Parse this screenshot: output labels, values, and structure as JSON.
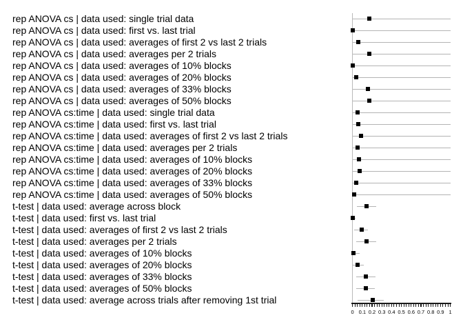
{
  "chart_data": {
    "type": "scatter",
    "subtype": "horizontal-forest-plot",
    "title": "",
    "xlabel": "",
    "ylabel": "",
    "xlim": [
      0,
      1
    ],
    "x_ticks": [
      "0",
      "0.1",
      "0.2",
      "0.3",
      "0.4",
      "0.5",
      "0.6",
      "0.7",
      "0.8",
      "0.9",
      "1"
    ],
    "x_minor_tick_step": 0.025,
    "grid": false,
    "legend": "none",
    "marker": "black-square",
    "error_bar_style": "plain-line-no-caps",
    "rows": [
      {
        "label": "rep ANOVA cs | data used: single trial data",
        "value": 0.172,
        "ci": [
          0,
          1
        ]
      },
      {
        "label": "rep ANOVA cs | data used: first vs. last trial",
        "value": 0.0,
        "ci": [
          0,
          1
        ]
      },
      {
        "label": "rep ANOVA cs | data used: averages of first 2 vs last 2 trials",
        "value": 0.062,
        "ci": [
          0,
          1
        ]
      },
      {
        "label": "rep ANOVA cs | data used: averages per 2 trials",
        "value": 0.172,
        "ci": [
          0,
          1
        ]
      },
      {
        "label": "rep ANOVA cs | data used: averages of 10% blocks",
        "value": 0.006,
        "ci": [
          0,
          1
        ]
      },
      {
        "label": "rep ANOVA cs | data used: averages of 20% blocks",
        "value": 0.039,
        "ci": [
          0,
          1
        ]
      },
      {
        "label": "rep ANOVA cs | data used: averages of 33% blocks",
        "value": 0.158,
        "ci": [
          0,
          1
        ]
      },
      {
        "label": "rep ANOVA cs | data used: averages of 50% blocks",
        "value": 0.17,
        "ci": [
          0,
          1
        ]
      },
      {
        "label": "rep ANOVA cs:time | data used: single trial data",
        "value": 0.053,
        "ci": [
          0,
          1
        ]
      },
      {
        "label": "rep ANOVA cs:time | data used: first vs. last trial",
        "value": 0.058,
        "ci": [
          0,
          1
        ]
      },
      {
        "label": "rep ANOVA cs:time | data used: averages of first 2 vs last 2 trials",
        "value": 0.086,
        "ci": [
          0,
          1
        ]
      },
      {
        "label": "rep ANOVA cs:time | data used: averages per 2 trials",
        "value": 0.051,
        "ci": [
          0,
          1
        ]
      },
      {
        "label": "rep ANOVA cs:time | data used: averages of 10% blocks",
        "value": 0.065,
        "ci": [
          0,
          1
        ]
      },
      {
        "label": "rep ANOVA cs:time | data used: averages of 20% blocks",
        "value": 0.072,
        "ci": [
          0,
          1
        ]
      },
      {
        "label": "rep ANOVA cs:time | data used: averages of 33% blocks",
        "value": 0.039,
        "ci": [
          0,
          1
        ]
      },
      {
        "label": "rep ANOVA cs:time | data used: averages of 50% blocks",
        "value": 0.02,
        "ci": [
          0,
          1
        ]
      },
      {
        "label": "t-test | data used: average across block",
        "value": 0.145,
        "ci": [
          0.046,
          0.245
        ]
      },
      {
        "label": "t-test | data used: first vs. last trial",
        "value": 0.004,
        "ci": [
          0,
          0.03
        ]
      },
      {
        "label": "t-test | data used: averages of first 2 vs last 2 trials",
        "value": 0.095,
        "ci": [
          0.015,
          0.155
        ]
      },
      {
        "label": "t-test | data used: averages per 2 trials",
        "value": 0.142,
        "ci": [
          0.04,
          0.24
        ]
      },
      {
        "label": "t-test | data used: averages of 10% blocks",
        "value": 0.008,
        "ci": [
          0,
          0.07
        ]
      },
      {
        "label": "t-test | data used: averages of 20% blocks",
        "value": 0.053,
        "ci": [
          0,
          0.118
        ]
      },
      {
        "label": "t-test | data used: averages of 33% blocks",
        "value": 0.135,
        "ci": [
          0.037,
          0.236
        ]
      },
      {
        "label": "t-test | data used: averages of 50% blocks",
        "value": 0.139,
        "ci": [
          0.041,
          0.229
        ]
      },
      {
        "label": "t-test | data used: average across trials after removing 1st trial",
        "value": 0.209,
        "ci": [
          0.055,
          0.318
        ]
      }
    ],
    "colors": {
      "marker": "#000000",
      "error_bar": "#b3b3b3",
      "axis": "#1a1a1a",
      "text": "#000000",
      "background": "#ffffff"
    }
  }
}
